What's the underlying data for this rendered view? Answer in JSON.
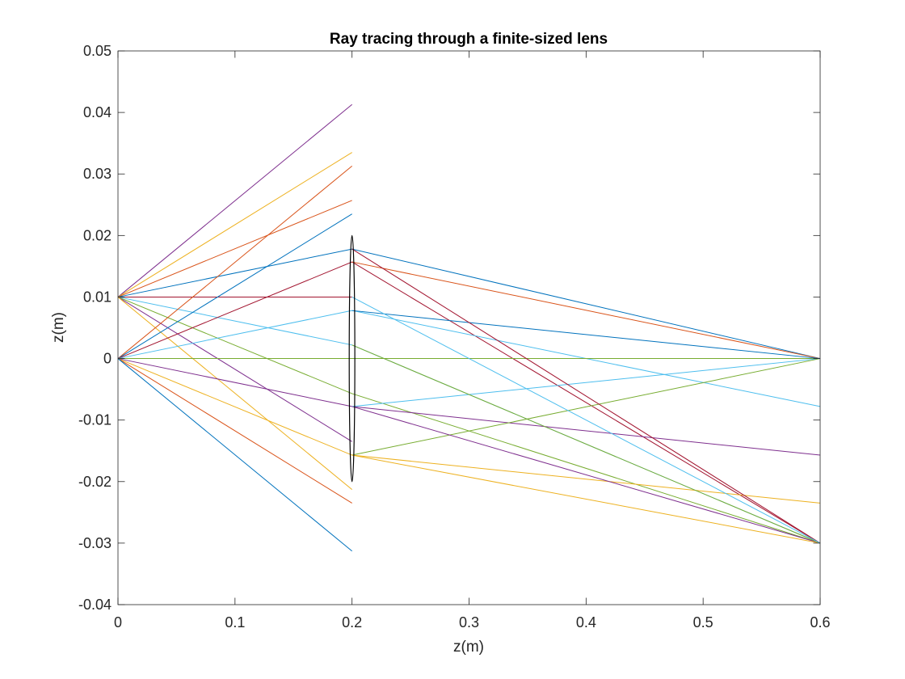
{
  "chart_data": {
    "type": "line",
    "title": "Ray tracing through a finite-sized lens",
    "xlabel": "z(m)",
    "ylabel": "z(m)",
    "xlim": [
      0,
      0.6
    ],
    "ylim": [
      -0.04,
      0.05
    ],
    "xticks": [
      0,
      0.1,
      0.2,
      0.3,
      0.4,
      0.5,
      0.6
    ],
    "xtick_labels": [
      "0",
      "0.1",
      "0.2",
      "0.3",
      "0.4",
      "0.5",
      "0.6"
    ],
    "yticks": [
      -0.04,
      -0.03,
      -0.02,
      -0.01,
      0,
      0.01,
      0.02,
      0.03,
      0.04,
      0.05
    ],
    "ytick_labels": [
      "-0.04",
      "-0.03",
      "-0.02",
      "-0.01",
      "0",
      "0.01",
      "0.02",
      "0.03",
      "0.04",
      "0.05"
    ],
    "grid": false,
    "box": true,
    "lens": {
      "z": 0.2,
      "half_height": 0.02,
      "half_width": 0.0024,
      "color": "#000000"
    },
    "series": [
      {
        "color": "#7e2f8e",
        "x": [
          0,
          0.2
        ],
        "y": [
          0.01,
          0.0413
        ]
      },
      {
        "color": "#edb120",
        "x": [
          0,
          0.2
        ],
        "y": [
          0.01,
          0.0335
        ]
      },
      {
        "color": "#d95319",
        "x": [
          0,
          0.2
        ],
        "y": [
          0.01,
          0.0257
        ]
      },
      {
        "color": "#0072bd",
        "x": [
          0,
          0.2,
          0.6
        ],
        "y": [
          0.01,
          0.0178,
          0
        ]
      },
      {
        "color": "#a2142f",
        "x": [
          0,
          0.2
        ],
        "y": [
          0.01,
          0.01
        ]
      },
      {
        "color": "#4dbeee",
        "x": [
          0,
          0.2,
          0.6
        ],
        "y": [
          0.01,
          0.0022,
          -0.03
        ]
      },
      {
        "color": "#77ac30",
        "x": [
          0,
          0.2,
          0.6
        ],
        "y": [
          0.01,
          -0.0057,
          -0.03
        ]
      },
      {
        "color": "#7e2f8e",
        "x": [
          0,
          0.2
        ],
        "y": [
          0.01,
          -0.0135
        ]
      },
      {
        "color": "#edb120",
        "x": [
          0,
          0.2
        ],
        "y": [
          0.01,
          -0.0213
        ]
      },
      {
        "color": "#d95319",
        "x": [
          0,
          0.2
        ],
        "y": [
          0,
          0.0313
        ]
      },
      {
        "color": "#0072bd",
        "x": [
          0,
          0.2
        ],
        "y": [
          0,
          0.0235
        ]
      },
      {
        "color": "#a2142f",
        "x": [
          0,
          0.2,
          0.6
        ],
        "y": [
          0,
          0.0157,
          -0.03
        ]
      },
      {
        "color": "#4dbeee",
        "x": [
          0,
          0.2,
          0.6
        ],
        "y": [
          0,
          0.0078,
          -0.0078
        ]
      },
      {
        "color": "#77ac30",
        "x": [
          0,
          0.2,
          0.6
        ],
        "y": [
          0,
          0,
          0
        ]
      },
      {
        "color": "#7e2f8e",
        "x": [
          0,
          0.2,
          0.6
        ],
        "y": [
          0,
          -0.0078,
          -0.0157
        ]
      },
      {
        "color": "#edb120",
        "x": [
          0,
          0.2,
          0.6
        ],
        "y": [
          0,
          -0.0157,
          -0.0235
        ]
      },
      {
        "color": "#d95319",
        "x": [
          0,
          0.2
        ],
        "y": [
          0,
          -0.0235
        ]
      },
      {
        "color": "#0072bd",
        "x": [
          0,
          0.2
        ],
        "y": [
          0,
          -0.0313
        ]
      },
      {
        "color": "#4dbeee",
        "x": [
          0.2,
          0.6
        ],
        "y": [
          -0.0078,
          0
        ]
      },
      {
        "color": "#77ac30",
        "x": [
          0.2,
          0.6
        ],
        "y": [
          -0.0157,
          0
        ]
      },
      {
        "color": "#d95319",
        "x": [
          0.2,
          0.6
        ],
        "y": [
          0.0157,
          0
        ]
      },
      {
        "color": "#0072bd",
        "x": [
          0.2,
          0.6
        ],
        "y": [
          0.0078,
          0
        ]
      },
      {
        "color": "#7e2f8e",
        "x": [
          0.2,
          0.6
        ],
        "y": [
          -0.0078,
          -0.03
        ]
      },
      {
        "color": "#edb120",
        "x": [
          0.2,
          0.6
        ],
        "y": [
          -0.0157,
          -0.03
        ]
      },
      {
        "color": "#a2142f",
        "x": [
          0.2,
          0.6
        ],
        "y": [
          0.0178,
          -0.03
        ]
      },
      {
        "color": "#77ac30",
        "x": [
          0.2,
          0.6
        ],
        "y": [
          0.0022,
          -0.03
        ]
      },
      {
        "color": "#4dbeee",
        "x": [
          0.2,
          0.6
        ],
        "y": [
          0.01,
          -0.03
        ]
      }
    ]
  }
}
